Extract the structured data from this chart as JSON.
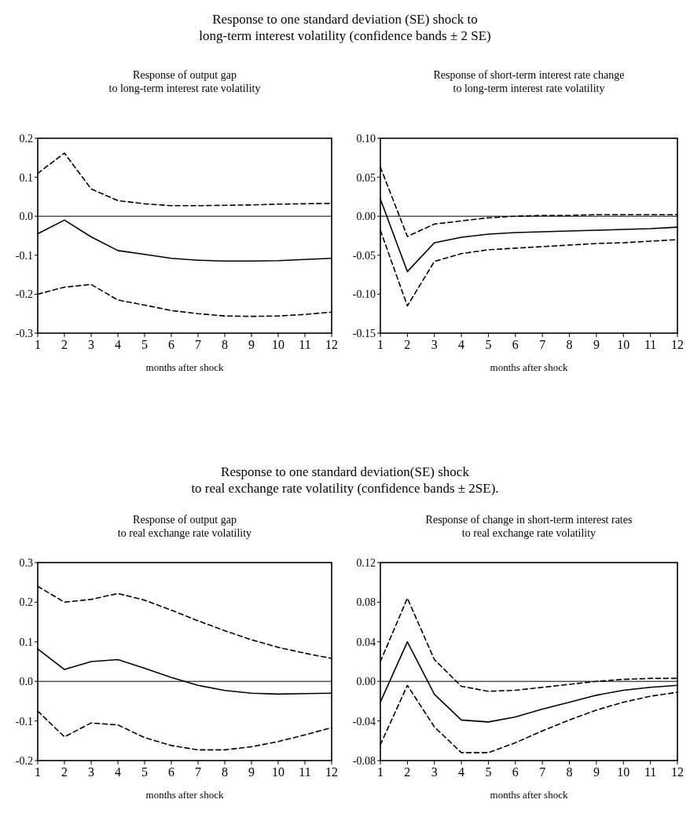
{
  "chart_data": [
    {
      "type": "line",
      "title": "Response to one standard deviation (SE) shock to\nlong-term interest volatility (confidence bands  ± 2 SE)",
      "subtitle": "Response of output gap\nto long-term interest rate volatility",
      "xlabel": "months after shock",
      "x": [
        1,
        2,
        3,
        4,
        5,
        6,
        7,
        8,
        9,
        10,
        11,
        12
      ],
      "xlim": [
        1,
        12
      ],
      "xticks": [
        1,
        2,
        3,
        4,
        5,
        6,
        7,
        8,
        9,
        10,
        11,
        12
      ],
      "ylim": [
        -0.3,
        0.2
      ],
      "yticks": [
        -0.3,
        -0.2,
        -0.1,
        {
          "value": 0,
          "label": "0.0"
        },
        0.1,
        0.2
      ],
      "grid": false,
      "ref_lines": [
        {
          "axis": "y",
          "value": 0,
          "color": "#000000",
          "line_style": "solid"
        }
      ],
      "series": [
        {
          "color": "#000000",
          "line_style": "solid",
          "values": [
            -0.045,
            -0.01,
            -0.053,
            -0.088,
            -0.098,
            -0.108,
            -0.113,
            -0.115,
            -0.115,
            -0.114,
            -0.111,
            -0.108
          ]
        },
        {
          "color": "#000000",
          "line_style": "dashed",
          "values": [
            0.11,
            0.162,
            0.07,
            0.04,
            0.032,
            0.027,
            0.027,
            0.028,
            0.029,
            0.031,
            0.032,
            0.033
          ]
        },
        {
          "color": "#000000",
          "line_style": "dashed",
          "values": [
            -0.2,
            -0.182,
            -0.175,
            -0.215,
            -0.228,
            -0.242,
            -0.25,
            -0.256,
            -0.257,
            -0.256,
            -0.252,
            -0.246
          ]
        }
      ]
    },
    {
      "type": "line",
      "subtitle": "Response of short-term interest rate change\nto long-term interest rate volatility",
      "xlabel": "months after shock",
      "x": [
        1,
        2,
        3,
        4,
        5,
        6,
        7,
        8,
        9,
        10,
        11,
        12
      ],
      "xlim": [
        1,
        12
      ],
      "xticks": [
        1,
        2,
        3,
        4,
        5,
        6,
        7,
        8,
        9,
        10,
        11,
        12
      ],
      "ylim": [
        -0.15,
        0.1
      ],
      "yticks": [
        -0.15,
        {
          "value": -0.1,
          "label": "-0.10"
        },
        -0.05,
        {
          "value": 0,
          "label": "0.00"
        },
        0.05,
        {
          "value": 0.1,
          "label": "0.10"
        }
      ],
      "grid": false,
      "ref_lines": [
        {
          "axis": "y",
          "value": 0,
          "color": "#000000",
          "line_style": "solid"
        }
      ],
      "series": [
        {
          "color": "#000000",
          "line_style": "solid",
          "values": [
            0.022,
            -0.071,
            -0.034,
            -0.027,
            -0.023,
            -0.021,
            -0.02,
            -0.019,
            -0.018,
            -0.017,
            -0.016,
            -0.014
          ]
        },
        {
          "color": "#000000",
          "line_style": "dashed",
          "values": [
            0.063,
            -0.026,
            -0.01,
            -0.006,
            -0.002,
            0.0,
            0.001,
            0.001,
            0.002,
            0.002,
            0.002,
            0.002
          ]
        },
        {
          "color": "#000000",
          "line_style": "dashed",
          "values": [
            -0.018,
            -0.115,
            -0.058,
            -0.048,
            -0.043,
            -0.041,
            -0.039,
            -0.037,
            -0.035,
            -0.034,
            -0.032,
            -0.03
          ]
        }
      ]
    },
    {
      "type": "line",
      "title": "Response to one standard deviation(SE) shock\nto real exchange rate volatility (confidence bands ± 2SE).",
      "subtitle": "Response of output gap\nto real exchange rate volatility",
      "xlabel": "months after shock",
      "x": [
        1,
        2,
        3,
        4,
        5,
        6,
        7,
        8,
        9,
        10,
        11,
        12
      ],
      "xlim": [
        1,
        12
      ],
      "xticks": [
        1,
        2,
        3,
        4,
        5,
        6,
        7,
        8,
        9,
        10,
        11,
        12
      ],
      "ylim": [
        -0.2,
        0.3
      ],
      "yticks": [
        -0.2,
        -0.1,
        {
          "value": 0,
          "label": "0.0"
        },
        0.1,
        0.2,
        0.3
      ],
      "grid": false,
      "ref_lines": [
        {
          "axis": "y",
          "value": 0,
          "color": "#000000",
          "line_style": "solid"
        }
      ],
      "series": [
        {
          "color": "#000000",
          "line_style": "solid",
          "values": [
            0.082,
            0.03,
            0.05,
            0.055,
            0.033,
            0.01,
            -0.01,
            -0.023,
            -0.03,
            -0.032,
            -0.031,
            -0.03
          ]
        },
        {
          "color": "#000000",
          "line_style": "dashed",
          "values": [
            0.24,
            0.2,
            0.207,
            0.222,
            0.205,
            0.18,
            0.153,
            0.128,
            0.105,
            0.086,
            0.071,
            0.058
          ]
        },
        {
          "color": "#000000",
          "line_style": "dashed",
          "values": [
            -0.075,
            -0.14,
            -0.105,
            -0.11,
            -0.142,
            -0.162,
            -0.173,
            -0.173,
            -0.165,
            -0.152,
            -0.135,
            -0.117
          ]
        }
      ]
    },
    {
      "type": "line",
      "subtitle": "Response of change in short-term interest rates\nto real exchange rate volatility",
      "xlabel": "months after shock",
      "x": [
        1,
        2,
        3,
        4,
        5,
        6,
        7,
        8,
        9,
        10,
        11,
        12
      ],
      "xlim": [
        1,
        12
      ],
      "xticks": [
        1,
        2,
        3,
        4,
        5,
        6,
        7,
        8,
        9,
        10,
        11,
        12
      ],
      "ylim": [
        -0.08,
        0.12
      ],
      "yticks": [
        -0.08,
        -0.04,
        {
          "value": 0,
          "label": "0.00"
        },
        0.04,
        0.08,
        0.12
      ],
      "grid": false,
      "ref_lines": [
        {
          "axis": "y",
          "value": 0,
          "color": "#000000",
          "line_style": "solid"
        }
      ],
      "series": [
        {
          "color": "#000000",
          "line_style": "solid",
          "values": [
            -0.021,
            0.04,
            -0.013,
            -0.039,
            -0.041,
            -0.036,
            -0.028,
            -0.021,
            -0.014,
            -0.009,
            -0.006,
            -0.004
          ]
        },
        {
          "color": "#000000",
          "line_style": "dashed",
          "values": [
            0.02,
            0.084,
            0.022,
            -0.005,
            -0.01,
            -0.009,
            -0.006,
            -0.003,
            0.0,
            0.002,
            0.003,
            0.003
          ]
        },
        {
          "color": "#000000",
          "line_style": "dashed",
          "values": [
            -0.064,
            -0.004,
            -0.046,
            -0.072,
            -0.072,
            -0.062,
            -0.05,
            -0.039,
            -0.029,
            -0.021,
            -0.015,
            -0.011
          ]
        }
      ]
    }
  ]
}
